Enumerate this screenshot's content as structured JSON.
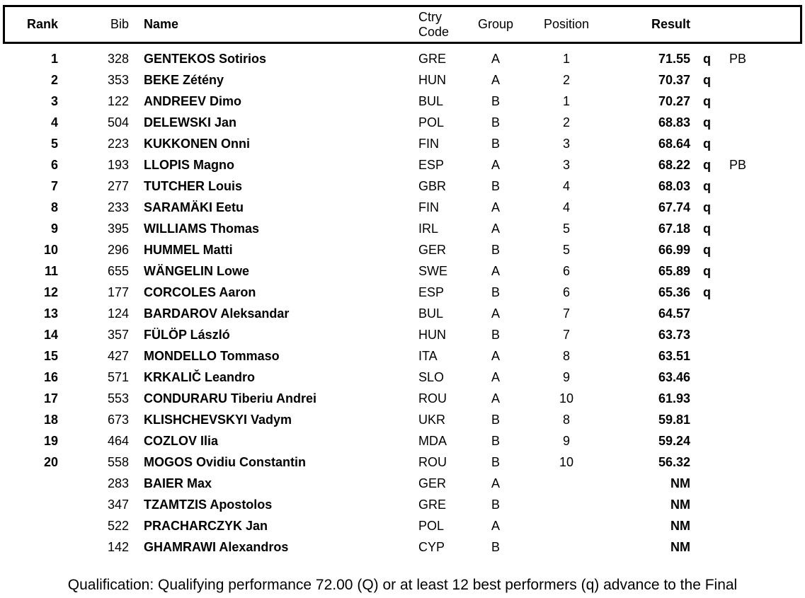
{
  "table": {
    "columns": {
      "rank": "Rank",
      "bib": "Bib",
      "name": "Name",
      "ctry": "Ctry Code",
      "group": "Group",
      "position": "Position",
      "result": "Result"
    },
    "rows": [
      {
        "rank": "1",
        "bib": "328",
        "name": "GENTEKOS Sotirios",
        "ctry": "GRE",
        "group": "A",
        "position": "1",
        "result": "71.55",
        "qual": "q",
        "note": "PB"
      },
      {
        "rank": "2",
        "bib": "353",
        "name": "BEKE Zétény",
        "ctry": "HUN",
        "group": "A",
        "position": "2",
        "result": "70.37",
        "qual": "q",
        "note": ""
      },
      {
        "rank": "3",
        "bib": "122",
        "name": "ANDREEV Dimo",
        "ctry": "BUL",
        "group": "B",
        "position": "1",
        "result": "70.27",
        "qual": "q",
        "note": ""
      },
      {
        "rank": "4",
        "bib": "504",
        "name": "DELEWSKI Jan",
        "ctry": "POL",
        "group": "B",
        "position": "2",
        "result": "68.83",
        "qual": "q",
        "note": ""
      },
      {
        "rank": "5",
        "bib": "223",
        "name": "KUKKONEN Onni",
        "ctry": "FIN",
        "group": "B",
        "position": "3",
        "result": "68.64",
        "qual": "q",
        "note": ""
      },
      {
        "rank": "6",
        "bib": "193",
        "name": "LLOPIS Magno",
        "ctry": "ESP",
        "group": "A",
        "position": "3",
        "result": "68.22",
        "qual": "q",
        "note": "PB"
      },
      {
        "rank": "7",
        "bib": "277",
        "name": "TUTCHER Louis",
        "ctry": "GBR",
        "group": "B",
        "position": "4",
        "result": "68.03",
        "qual": "q",
        "note": ""
      },
      {
        "rank": "8",
        "bib": "233",
        "name": "SARAMÄKI Eetu",
        "ctry": "FIN",
        "group": "A",
        "position": "4",
        "result": "67.74",
        "qual": "q",
        "note": ""
      },
      {
        "rank": "9",
        "bib": "395",
        "name": "WILLIAMS Thomas",
        "ctry": "IRL",
        "group": "A",
        "position": "5",
        "result": "67.18",
        "qual": "q",
        "note": ""
      },
      {
        "rank": "10",
        "bib": "296",
        "name": "HUMMEL Matti",
        "ctry": "GER",
        "group": "B",
        "position": "5",
        "result": "66.99",
        "qual": "q",
        "note": ""
      },
      {
        "rank": "11",
        "bib": "655",
        "name": "WÄNGELIN Lowe",
        "ctry": "SWE",
        "group": "A",
        "position": "6",
        "result": "65.89",
        "qual": "q",
        "note": ""
      },
      {
        "rank": "12",
        "bib": "177",
        "name": "CORCOLES Aaron",
        "ctry": "ESP",
        "group": "B",
        "position": "6",
        "result": "65.36",
        "qual": "q",
        "note": ""
      },
      {
        "rank": "13",
        "bib": "124",
        "name": "BARDAROV Aleksandar",
        "ctry": "BUL",
        "group": "A",
        "position": "7",
        "result": "64.57",
        "qual": "",
        "note": ""
      },
      {
        "rank": "14",
        "bib": "357",
        "name": "FÜLÖP László",
        "ctry": "HUN",
        "group": "B",
        "position": "7",
        "result": "63.73",
        "qual": "",
        "note": ""
      },
      {
        "rank": "15",
        "bib": "427",
        "name": "MONDELLO Tommaso",
        "ctry": "ITA",
        "group": "A",
        "position": "8",
        "result": "63.51",
        "qual": "",
        "note": ""
      },
      {
        "rank": "16",
        "bib": "571",
        "name": "KRKALIČ Leandro",
        "ctry": "SLO",
        "group": "A",
        "position": "9",
        "result": "63.46",
        "qual": "",
        "note": ""
      },
      {
        "rank": "17",
        "bib": "553",
        "name": "CONDURARU Tiberiu Andrei",
        "ctry": "ROU",
        "group": "A",
        "position": "10",
        "result": "61.93",
        "qual": "",
        "note": ""
      },
      {
        "rank": "18",
        "bib": "673",
        "name": "KLISHCHEVSKYI Vadym",
        "ctry": "UKR",
        "group": "B",
        "position": "8",
        "result": "59.81",
        "qual": "",
        "note": ""
      },
      {
        "rank": "19",
        "bib": "464",
        "name": "COZLOV Ilia",
        "ctry": "MDA",
        "group": "B",
        "position": "9",
        "result": "59.24",
        "qual": "",
        "note": ""
      },
      {
        "rank": "20",
        "bib": "558",
        "name": "MOGOS Ovidiu Constantin",
        "ctry": "ROU",
        "group": "B",
        "position": "10",
        "result": "56.32",
        "qual": "",
        "note": ""
      },
      {
        "rank": "",
        "bib": "283",
        "name": "BAIER Max",
        "ctry": "GER",
        "group": "A",
        "position": "",
        "result": "NM",
        "qual": "",
        "note": ""
      },
      {
        "rank": "",
        "bib": "347",
        "name": "TZAMTZIS Apostolos",
        "ctry": "GRE",
        "group": "B",
        "position": "",
        "result": "NM",
        "qual": "",
        "note": ""
      },
      {
        "rank": "",
        "bib": "522",
        "name": "PRACHARCZYK Jan",
        "ctry": "POL",
        "group": "A",
        "position": "",
        "result": "NM",
        "qual": "",
        "note": ""
      },
      {
        "rank": "",
        "bib": "142",
        "name": "GHAMRAWI Alexandros",
        "ctry": "CYP",
        "group": "B",
        "position": "",
        "result": "NM",
        "qual": "",
        "note": ""
      }
    ]
  },
  "footer": {
    "note": "Qualification: Qualifying performance 72.00 (Q) or at least 12 best performers (q) advance to the Final"
  },
  "colors": {
    "text": "#000000",
    "background": "#ffffff",
    "border": "#000000"
  }
}
